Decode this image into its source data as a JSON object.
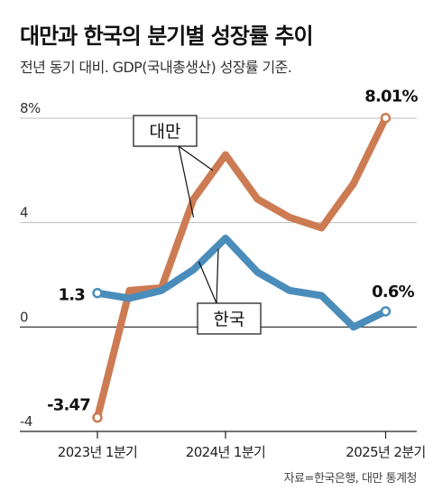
{
  "title": "대만과 한국의 분기별 성장률 추이",
  "subtitle": "전년 동기 대비. GDP(국내총생산) 성장률 기준.",
  "source": "자료=한국은행, 대만 통계청",
  "colors": {
    "taiwan": "#cd7b53",
    "korea": "#4a8dbb",
    "grid": "#bdbdbd",
    "axis": "#222222"
  },
  "chart_data": {
    "type": "line",
    "title": "대만과 한국의 분기별 성장률 추이",
    "subtitle": "전년 동기 대비. GDP(국내총생산) 성장률 기준.",
    "xlabel": "",
    "ylabel": "",
    "ylim": [
      -4,
      8
    ],
    "y_ticks": [
      {
        "value": 8,
        "label": "8%"
      },
      {
        "value": 4,
        "label": "4"
      },
      {
        "value": 0,
        "label": "0"
      },
      {
        "value": -4,
        "label": "-4"
      }
    ],
    "grid": true,
    "x": [
      "2023Q1",
      "2023Q2",
      "2023Q3",
      "2023Q4",
      "2024Q1",
      "2024Q2",
      "2024Q3",
      "2024Q4",
      "2025Q1",
      "2025Q2"
    ],
    "x_ticks": [
      {
        "index": 0,
        "label": "2023년 1분기"
      },
      {
        "index": 4,
        "label": "2024년 1분기"
      },
      {
        "index": 9,
        "label": "2025년 2분기"
      }
    ],
    "series": [
      {
        "name": "대만",
        "color": "#cd7b53",
        "values": [
          -3.47,
          1.4,
          1.5,
          4.9,
          6.6,
          4.9,
          4.2,
          3.8,
          5.5,
          8.01
        ]
      },
      {
        "name": "한국",
        "color": "#4a8dbb",
        "values": [
          1.3,
          1.1,
          1.4,
          2.2,
          3.4,
          2.1,
          1.4,
          1.2,
          0.0,
          0.6
        ]
      }
    ],
    "annotations": [
      {
        "series": "대만",
        "index": 0,
        "label": "-3.47"
      },
      {
        "series": "대만",
        "index": 9,
        "label": "8.01%"
      },
      {
        "series": "한국",
        "index": 0,
        "label": "1.3"
      },
      {
        "series": "한국",
        "index": 9,
        "label": "0.6%"
      }
    ]
  }
}
